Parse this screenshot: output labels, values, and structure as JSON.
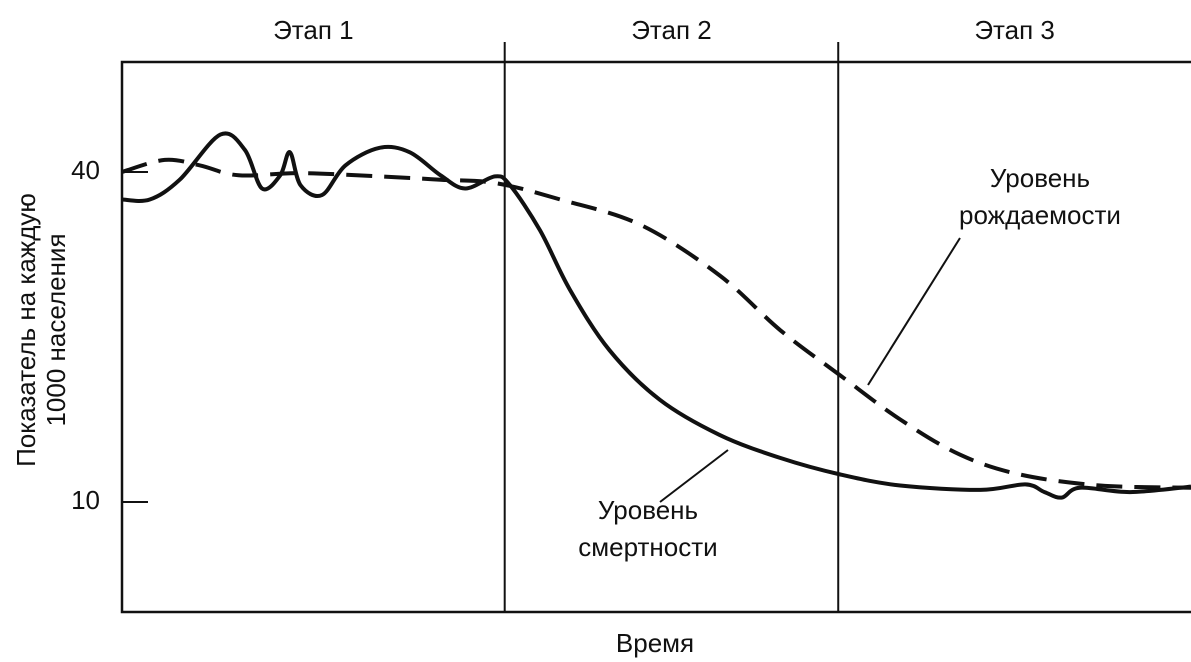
{
  "chart_data": {
    "type": "line",
    "stages": [
      {
        "label": "Этап 1",
        "start": 0,
        "end": 35.8
      },
      {
        "label": "Этап 2",
        "start": 35.8,
        "end": 67
      },
      {
        "label": "Этап 3",
        "start": 67,
        "end": 100
      }
    ],
    "y_label": [
      "Показатель на каждую",
      "1000 населения"
    ],
    "x_label": "Время",
    "xlim": [
      0,
      100
    ],
    "ylim": [
      0,
      50
    ],
    "yticks": [
      10,
      40
    ],
    "series": [
      {
        "name": "Уровень смертности",
        "color": "#111111",
        "dash": "solid",
        "x": [
          0,
          2.6,
          5.4,
          9.2,
          11.5,
          13.1,
          14.8,
          15.7,
          16.7,
          18.7,
          20.9,
          24.1,
          26.9,
          29.8,
          32.1,
          34.9,
          36.3,
          39.1,
          41.9,
          45.6,
          50.3,
          55.9,
          61.6,
          67.2,
          72.8,
          80.3,
          84.5,
          86.3,
          87.9,
          89.6,
          94.3,
          100
        ],
        "values": [
          37.5,
          37.5,
          39.3,
          43.4,
          42,
          38.5,
          39.7,
          41.8,
          38.8,
          37.9,
          40.6,
          42.2,
          41.8,
          39.7,
          38.5,
          39.6,
          38.8,
          34.7,
          29.3,
          23.8,
          19.3,
          16.1,
          14,
          12.5,
          11.5,
          11.1,
          11.6,
          10.9,
          10.4,
          11.3,
          10.9,
          11.4
        ]
      },
      {
        "name": "Уровень рождаемости",
        "color": "#111111",
        "dash": "dashed",
        "x": [
          0,
          4,
          7.3,
          10.9,
          16.7,
          24.1,
          29.8,
          34.9,
          41,
          48.5,
          55.9,
          61.6,
          67.2,
          72.8,
          78.4,
          84,
          91.5,
          100
        ],
        "values": [
          40,
          41.1,
          40.6,
          39.7,
          39.9,
          39.6,
          39.3,
          39,
          37.5,
          35.2,
          30.6,
          25.6,
          21.5,
          17.5,
          14.3,
          12.5,
          11.5,
          11.3
        ]
      }
    ],
    "annotations": [
      {
        "series": 1,
        "text": [
          "Уровень",
          "рождаемости"
        ]
      },
      {
        "series": 0,
        "text": [
          "Уровень",
          "смертности"
        ]
      }
    ]
  }
}
